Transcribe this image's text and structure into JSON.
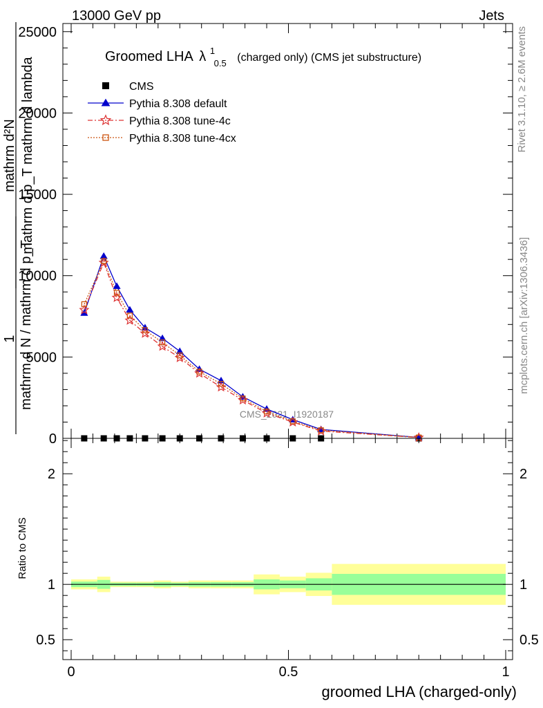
{
  "header": {
    "left": "13000 GeV pp",
    "right": "Jets"
  },
  "side": {
    "rivet": "Rivet 3.1.10, ≥ 2.6M events",
    "mcplots": "mcplots.cern.ch [arXiv:1306.3436]"
  },
  "watermark": "CMS_2021_I1920187",
  "chart_data": [
    {
      "type": "line",
      "title_main": "Groomed LHA",
      "title_symbol": "λ",
      "title_sup": "1",
      "title_sub": "0.5",
      "title_tail": "(charged only) (CMS jet substructure)",
      "ylabel_line1": "mathrm d²N",
      "ylabel_line2": "mathrm d p_T mathrm d lambda",
      "ylabel_prefix": "1",
      "ylabel_denominator": "mathrm d N / mathrm d p_T",
      "xlim": [
        0,
        1
      ],
      "ylim": [
        0,
        25500
      ],
      "yticks": [
        {
          "value": 0,
          "label": "0"
        },
        {
          "value": 5000,
          "label": "5000"
        },
        {
          "value": 10000,
          "label": "10000"
        },
        {
          "value": 15000,
          "label": "15000"
        },
        {
          "value": 20000,
          "label": "20000"
        },
        {
          "value": 25000,
          "label": "25000"
        }
      ],
      "legend_position": "top-left",
      "series": [
        {
          "name": "CMS",
          "color": "#000000",
          "marker": "square",
          "x": [
            0.03,
            0.075,
            0.105,
            0.135,
            0.17,
            0.21,
            0.25,
            0.295,
            0.345,
            0.395,
            0.45,
            0.51,
            0.575,
            0.8
          ],
          "y": [
            40,
            40,
            40,
            40,
            40,
            40,
            40,
            40,
            40,
            40,
            40,
            40,
            40,
            40
          ]
        },
        {
          "name": "Pythia 8.308 default",
          "color": "#0000cc",
          "marker": "triangle",
          "x": [
            0.03,
            0.075,
            0.105,
            0.135,
            0.17,
            0.21,
            0.25,
            0.295,
            0.345,
            0.395,
            0.45,
            0.51,
            0.575,
            0.8
          ],
          "y": [
            7700,
            11200,
            9350,
            7900,
            6800,
            6150,
            5350,
            4250,
            3550,
            2550,
            1800,
            1150,
            550,
            60
          ]
        },
        {
          "name": "Pythia 8.308 tune-4c",
          "color": "#dd3333",
          "marker": "star",
          "x": [
            0.03,
            0.075,
            0.105,
            0.135,
            0.17,
            0.21,
            0.25,
            0.295,
            0.345,
            0.395,
            0.45,
            0.51,
            0.575,
            0.8
          ],
          "y": [
            7900,
            10800,
            8650,
            7250,
            6450,
            5650,
            4950,
            4000,
            3150,
            2350,
            1550,
            1000,
            450,
            50
          ]
        },
        {
          "name": "Pythia 8.308 tune-4cx",
          "color": "#cc5511",
          "marker": "open-square",
          "x": [
            0.03,
            0.075,
            0.105,
            0.135,
            0.17,
            0.21,
            0.25,
            0.295,
            0.345,
            0.395,
            0.45,
            0.51,
            0.575,
            0.8
          ],
          "y": [
            8250,
            10900,
            8950,
            7550,
            6650,
            5900,
            5100,
            4100,
            3350,
            2450,
            1650,
            1050,
            500,
            55
          ]
        }
      ]
    },
    {
      "type": "area",
      "ylabel": "Ratio to CMS",
      "xlabel": "groomed LHA (charged-only)",
      "xlim": [
        0,
        1
      ],
      "ylim": [
        0.32,
        2.32
      ],
      "yticks": [
        {
          "value": 0.5,
          "label": "0.5"
        },
        {
          "value": 1,
          "label": "1"
        },
        {
          "value": 2,
          "label": "2"
        }
      ],
      "xticks": [
        {
          "value": 0,
          "label": "0"
        },
        {
          "value": 0.5,
          "label": "0.5"
        },
        {
          "value": 1,
          "label": "1"
        }
      ],
      "bands": {
        "inner_color": "#99ff99",
        "outer_color": "#ffff99",
        "bins": [
          {
            "x0": 0.0,
            "x1": 0.06,
            "inner": [
              0.975,
              1.025
            ],
            "outer": [
              0.955,
              1.045
            ]
          },
          {
            "x0": 0.06,
            "x1": 0.09,
            "inner": [
              0.96,
              1.04
            ],
            "outer": [
              0.93,
              1.07
            ]
          },
          {
            "x0": 0.09,
            "x1": 0.12,
            "inner": [
              0.985,
              1.015
            ],
            "outer": [
              0.975,
              1.025
            ]
          },
          {
            "x0": 0.12,
            "x1": 0.15,
            "inner": [
              0.985,
              1.015
            ],
            "outer": [
              0.975,
              1.025
            ]
          },
          {
            "x0": 0.15,
            "x1": 0.19,
            "inner": [
              0.985,
              1.015
            ],
            "outer": [
              0.975,
              1.025
            ]
          },
          {
            "x0": 0.19,
            "x1": 0.23,
            "inner": [
              0.98,
              1.02
            ],
            "outer": [
              0.965,
              1.035
            ]
          },
          {
            "x0": 0.23,
            "x1": 0.27,
            "inner": [
              0.985,
              1.015
            ],
            "outer": [
              0.975,
              1.025
            ]
          },
          {
            "x0": 0.27,
            "x1": 0.32,
            "inner": [
              0.98,
              1.02
            ],
            "outer": [
              0.965,
              1.035
            ]
          },
          {
            "x0": 0.32,
            "x1": 0.37,
            "inner": [
              0.98,
              1.02
            ],
            "outer": [
              0.965,
              1.035
            ]
          },
          {
            "x0": 0.37,
            "x1": 0.42,
            "inner": [
              0.98,
              1.02
            ],
            "outer": [
              0.965,
              1.035
            ]
          },
          {
            "x0": 0.42,
            "x1": 0.48,
            "inner": [
              0.955,
              1.045
            ],
            "outer": [
              0.91,
              1.09
            ]
          },
          {
            "x0": 0.48,
            "x1": 0.54,
            "inner": [
              0.965,
              1.035
            ],
            "outer": [
              0.93,
              1.07
            ]
          },
          {
            "x0": 0.54,
            "x1": 0.6,
            "inner": [
              0.945,
              1.055
            ],
            "outer": [
              0.895,
              1.105
            ]
          },
          {
            "x0": 0.6,
            "x1": 1.0,
            "inner": [
              0.905,
              1.095
            ],
            "outer": [
              0.815,
              1.185
            ]
          }
        ]
      }
    }
  ]
}
